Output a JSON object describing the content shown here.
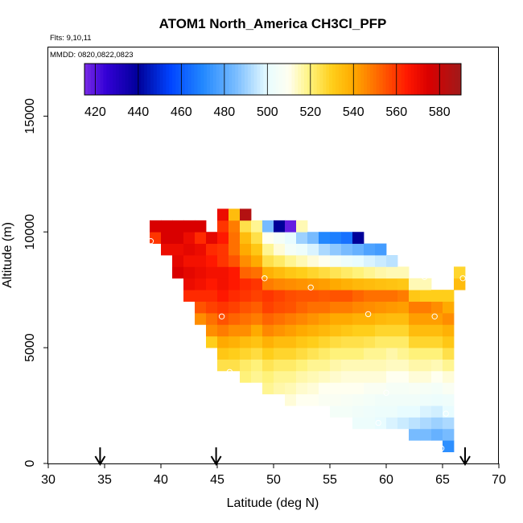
{
  "chart_data": {
    "type": "heatmap",
    "title": "ATOM1 North_America CH3Cl_PFP",
    "flights_note": "Flts: 9,10,11",
    "dates_note": "MMDD: 0820,0822,0823",
    "xlabel": "Latitude (deg N)",
    "ylabel": "Altitude (m)",
    "xlim": [
      30,
      70
    ],
    "ylim": [
      0,
      18000
    ],
    "x_ticks": [
      "30",
      "35",
      "40",
      "45",
      "50",
      "55",
      "60",
      "65",
      "70"
    ],
    "x_tick_values": [
      30,
      35,
      40,
      45,
      50,
      55,
      60,
      65,
      70
    ],
    "y_ticks": [
      "0",
      "5000",
      "10000",
      "15000"
    ],
    "y_tick_values": [
      0,
      5000,
      10000,
      15000
    ],
    "colorbar": {
      "min": 415,
      "max": 590,
      "labels": [
        "420",
        "440",
        "460",
        "480",
        "500",
        "520",
        "540",
        "560",
        "580"
      ],
      "label_values": [
        420,
        440,
        460,
        480,
        500,
        520,
        540,
        560,
        580
      ]
    },
    "cell_size": {
      "lat": 1,
      "alt": 500
    },
    "grid_columns": [
      {
        "lat": 39,
        "alt_start": 9500,
        "values": [
          560,
          575
        ]
      },
      {
        "lat": 40,
        "alt_start": 9000,
        "values": [
          570,
          575,
          575
        ]
      },
      {
        "lat": 41,
        "alt_start": 8000,
        "values": [
          575,
          572,
          570,
          575,
          575
        ]
      },
      {
        "lat": 42,
        "alt_start": 7000,
        "values": [
          562,
          570,
          572,
          568,
          572,
          570,
          575
        ]
      },
      {
        "lat": 43,
        "alt_start": 6000,
        "values": [
          545,
          555,
          562,
          568,
          570,
          568,
          570,
          562,
          575
        ]
      },
      {
        "lat": 44,
        "alt_start": 5000,
        "values": [
          530,
          545,
          550,
          558,
          562,
          565,
          568,
          565,
          562,
          572
        ]
      },
      {
        "lat": 45,
        "alt_start": 4000,
        "values": [
          525,
          532,
          540,
          548,
          555,
          560,
          565,
          568,
          568,
          560,
          560,
          565,
          560,
          570
        ]
      },
      {
        "lat": 46,
        "alt_start": 4000,
        "values": [
          525,
          530,
          538,
          545,
          552,
          558,
          562,
          565,
          565,
          555,
          550,
          550,
          548,
          535
        ]
      },
      {
        "lat": 47,
        "alt_start": 3500,
        "values": [
          520,
          522,
          528,
          535,
          545,
          550,
          555,
          560,
          562,
          552,
          545,
          540,
          535,
          525,
          585
        ]
      },
      {
        "lat": 48,
        "alt_start": 3500,
        "values": [
          518,
          520,
          526,
          533,
          540,
          548,
          553,
          558,
          560,
          550,
          540,
          532,
          525,
          518
        ]
      },
      {
        "lat": 49,
        "alt_start": 3000,
        "values": [
          518,
          520,
          524,
          530,
          538,
          546,
          552,
          558,
          560,
          548,
          538,
          525,
          518,
          510,
          485
        ]
      },
      {
        "lat": 50,
        "alt_start": 3000,
        "values": [
          516,
          518,
          522,
          528,
          535,
          544,
          550,
          556,
          558,
          546,
          535,
          522,
          512,
          505,
          440
        ]
      },
      {
        "lat": 51,
        "alt_start": 2500,
        "values": [
          512,
          515,
          518,
          522,
          528,
          535,
          542,
          548,
          555,
          556,
          545,
          532,
          518,
          505,
          500,
          418
        ]
      },
      {
        "lat": 52,
        "alt_start": 2500,
        "values": [
          510,
          513,
          516,
          520,
          526,
          532,
          540,
          546,
          552,
          555,
          544,
          530,
          515,
          502,
          490,
          515
        ]
      },
      {
        "lat": 53,
        "alt_start": 2500,
        "values": [
          510,
          512,
          515,
          518,
          524,
          530,
          538,
          544,
          550,
          555,
          543,
          528,
          512,
          498,
          485
        ]
      },
      {
        "lat": 54,
        "alt_start": 2500,
        "values": [
          508,
          510,
          514,
          518,
          522,
          528,
          536,
          542,
          550,
          554,
          542,
          526,
          510,
          492,
          470
        ]
      },
      {
        "lat": 55,
        "alt_start": 2000,
        "values": [
          505,
          508,
          510,
          513,
          516,
          520,
          526,
          534,
          540,
          548,
          555,
          540,
          524,
          505,
          488,
          468
        ]
      },
      {
        "lat": 56,
        "alt_start": 2000,
        "values": [
          505,
          507,
          510,
          512,
          515,
          520,
          525,
          532,
          540,
          548,
          555,
          538,
          522,
          502,
          485,
          465
        ]
      },
      {
        "lat": 57,
        "alt_start": 1500,
        "values": [
          502,
          504,
          506,
          510,
          512,
          515,
          520,
          525,
          530,
          538,
          546,
          552,
          536,
          520,
          500,
          482,
          440
        ]
      },
      {
        "lat": 58,
        "alt_start": 1500,
        "values": [
          502,
          503,
          505,
          508,
          512,
          515,
          518,
          524,
          530,
          538,
          545,
          550,
          535,
          518,
          498,
          478
        ]
      },
      {
        "lat": 59,
        "alt_start": 1500,
        "values": [
          500,
          502,
          504,
          508,
          512,
          515,
          518,
          522,
          528,
          536,
          544,
          550,
          534,
          516,
          496,
          476
        ]
      },
      {
        "lat": 60,
        "alt_start": 1500,
        "values": [
          498,
          502,
          504,
          506,
          510,
          514,
          516,
          522,
          528,
          535,
          543,
          550,
          533,
          515,
          494
        ]
      },
      {
        "lat": 61,
        "alt_start": 1500,
        "values": [
          496,
          500,
          504,
          506,
          510,
          514,
          518,
          522,
          528,
          535,
          542,
          548,
          532,
          515
        ]
      },
      {
        "lat": 62,
        "alt_start": 1000,
        "values": [
          485,
          494,
          500,
          504,
          507,
          512,
          516,
          520,
          528,
          535,
          542,
          548,
          532,
          515
        ]
      },
      {
        "lat": 63,
        "alt_start": 1000,
        "values": [
          485,
          492,
          498,
          503,
          506,
          512,
          516,
          520,
          528,
          535,
          542,
          548,
          530,
          515
        ]
      },
      {
        "lat": 64,
        "alt_start": 1000,
        "values": [
          482,
          490,
          497,
          502,
          505,
          510,
          515,
          520,
          528,
          535,
          542,
          545,
          530
        ]
      },
      {
        "lat": 65,
        "alt_start": 500,
        "values": [
          472,
          485,
          492,
          500,
          503,
          508,
          512,
          518,
          525,
          532,
          538,
          545,
          540,
          530
        ]
      },
      {
        "lat": 66,
        "alt_start": 7500,
        "values": [
          535,
          528
        ]
      }
    ],
    "sample_points": [
      {
        "lat": 39.1,
        "alt": 9600
      },
      {
        "lat": 42.4,
        "alt": 10850
      },
      {
        "lat": 47.4,
        "alt": 11850
      },
      {
        "lat": 51.6,
        "alt": 11400
      },
      {
        "lat": 57.1,
        "alt": 10900
      },
      {
        "lat": 49.2,
        "alt": 8000
      },
      {
        "lat": 53.3,
        "alt": 7600
      },
      {
        "lat": 63.4,
        "alt": 8050
      },
      {
        "lat": 66.8,
        "alt": 8000
      },
      {
        "lat": 45.4,
        "alt": 6350
      },
      {
        "lat": 58.4,
        "alt": 6450
      },
      {
        "lat": 64.3,
        "alt": 6350
      },
      {
        "lat": 46.1,
        "alt": 3950
      },
      {
        "lat": 60.0,
        "alt": 3050
      },
      {
        "lat": 65.3,
        "alt": 2150
      },
      {
        "lat": 59.3,
        "alt": 1750
      },
      {
        "lat": 64.9,
        "alt": 650
      }
    ],
    "arrow_markers": [
      34.6,
      44.9,
      67.0
    ]
  }
}
